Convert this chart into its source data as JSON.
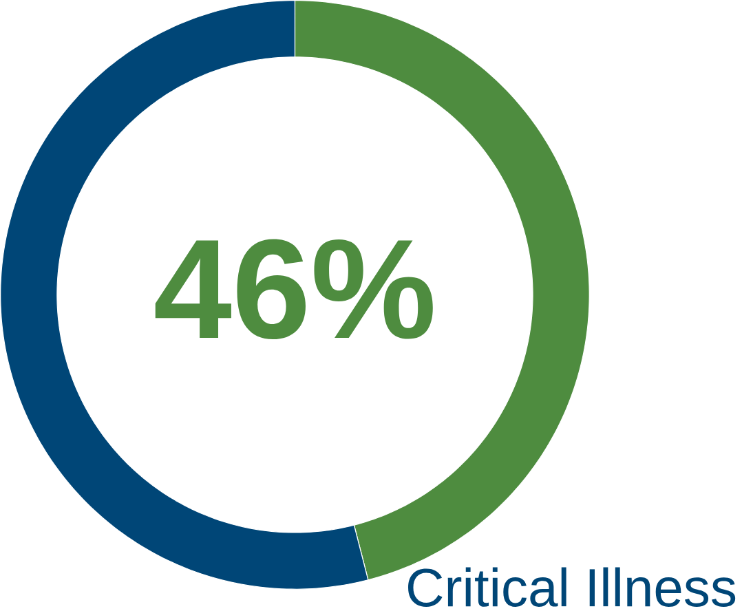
{
  "chart_data": {
    "type": "donut",
    "categories": [
      "Critical Illness",
      null
    ],
    "values": [
      46,
      54
    ],
    "colors": [
      "#4e8c3f",
      "#004677"
    ],
    "value_labels": [
      "46%",
      null
    ]
  }
}
